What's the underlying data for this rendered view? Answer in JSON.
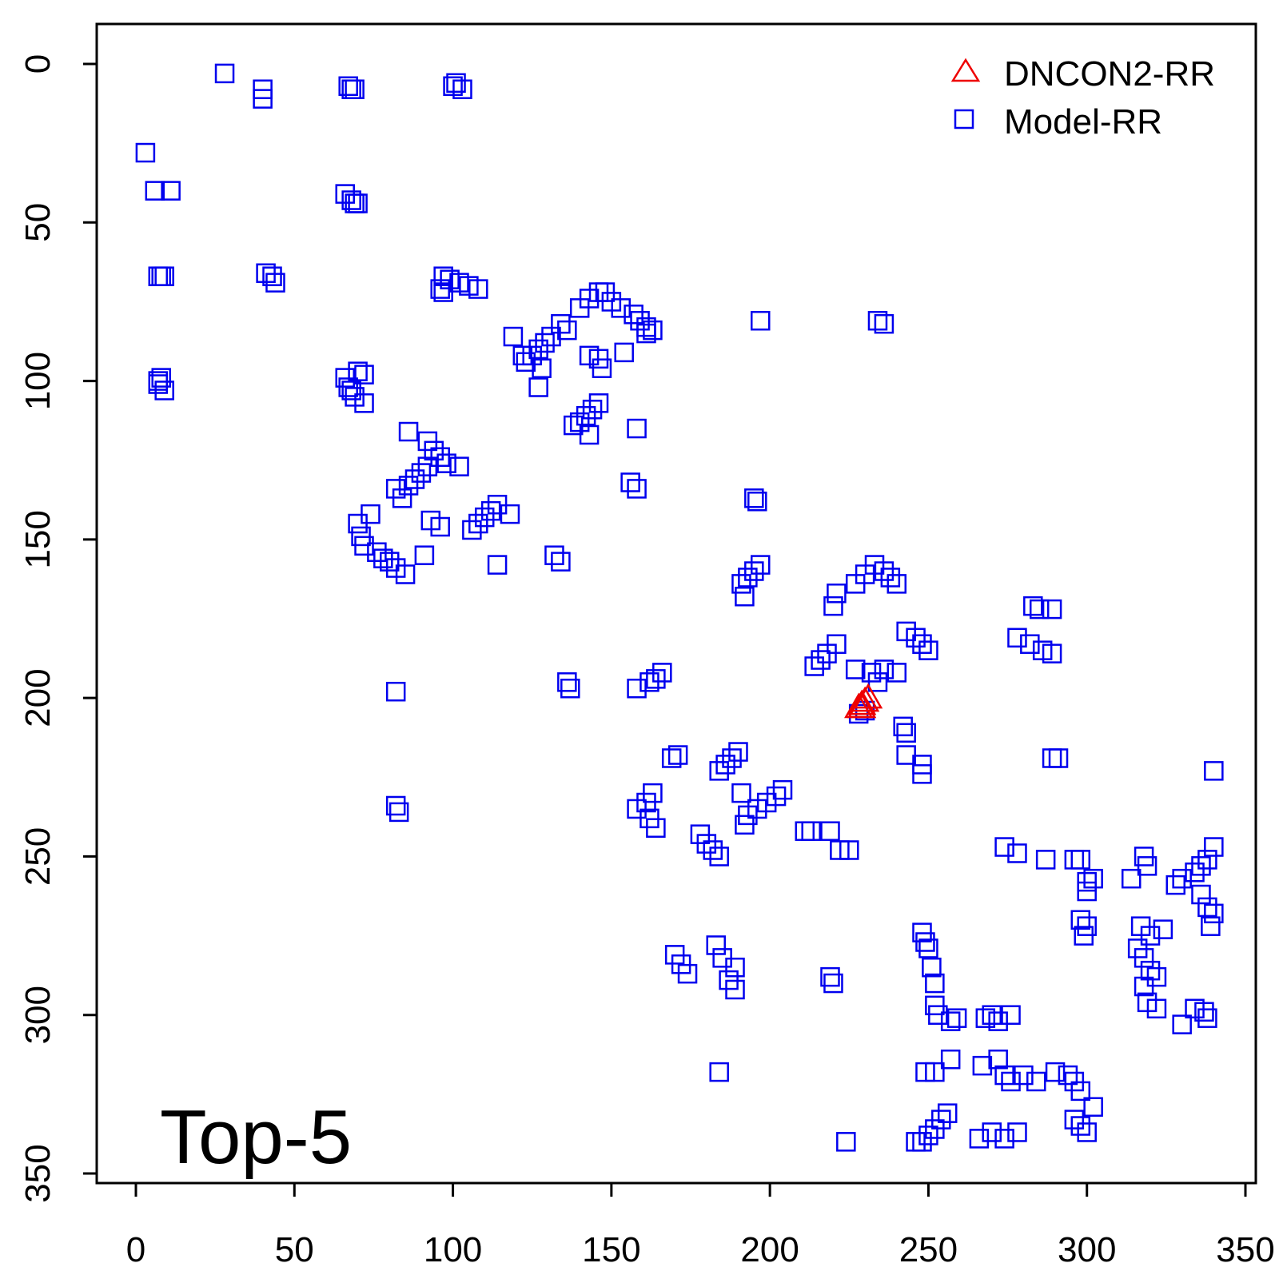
{
  "chart_data": {
    "type": "scatter",
    "title": "",
    "xlabel": "",
    "ylabel": "",
    "xlim": [
      0,
      350
    ],
    "ylim": [
      350,
      0
    ],
    "x_ticks": [
      "0",
      "50",
      "100",
      "150",
      "200",
      "250",
      "300",
      "350"
    ],
    "y_ticks": [
      "0",
      "50",
      "100",
      "150",
      "200",
      "250",
      "300",
      "350"
    ],
    "annotation": "Top-5",
    "legend": {
      "placement": "top-right",
      "entries": [
        "DNCON2-RR",
        "Model-RR"
      ]
    },
    "series": [
      {
        "name": "DNCON2-RR",
        "marker": "triangle",
        "color": "#ee0000",
        "points": [
          [
            228,
            203
          ],
          [
            229,
            202
          ],
          [
            230,
            201
          ],
          [
            231,
            200
          ],
          [
            229,
            203
          ]
        ]
      },
      {
        "name": "Model-RR",
        "marker": "square",
        "color": "#0000ee",
        "points": [
          [
            28,
            3
          ],
          [
            40,
            8
          ],
          [
            40,
            11
          ],
          [
            67,
            7
          ],
          [
            68,
            8
          ],
          [
            69,
            8
          ],
          [
            100,
            7
          ],
          [
            101,
            6
          ],
          [
            103,
            8
          ],
          [
            3,
            28
          ],
          [
            6,
            40
          ],
          [
            11,
            40
          ],
          [
            66,
            41
          ],
          [
            68,
            43
          ],
          [
            69,
            44
          ],
          [
            70,
            44
          ],
          [
            7,
            67
          ],
          [
            8,
            67
          ],
          [
            9,
            67
          ],
          [
            41,
            66
          ],
          [
            43,
            67
          ],
          [
            44,
            69
          ],
          [
            97,
            67
          ],
          [
            99,
            68
          ],
          [
            96,
            71
          ],
          [
            97,
            72
          ],
          [
            102,
            69
          ],
          [
            105,
            70
          ],
          [
            108,
            71
          ],
          [
            146,
            72
          ],
          [
            148,
            72
          ],
          [
            143,
            74
          ],
          [
            150,
            75
          ],
          [
            153,
            77
          ],
          [
            157,
            79
          ],
          [
            159,
            81
          ],
          [
            161,
            83
          ],
          [
            163,
            84
          ],
          [
            161,
            85
          ],
          [
            140,
            77
          ],
          [
            197,
            81
          ],
          [
            234,
            81
          ],
          [
            236,
            82
          ],
          [
            134,
            82
          ],
          [
            136,
            84
          ],
          [
            131,
            86
          ],
          [
            129,
            88
          ],
          [
            127,
            90
          ],
          [
            125,
            92
          ],
          [
            123,
            94
          ],
          [
            128,
            96
          ],
          [
            119,
            86
          ],
          [
            122,
            92
          ],
          [
            127,
            102
          ],
          [
            143,
            92
          ],
          [
            146,
            93
          ],
          [
            147,
            96
          ],
          [
            154,
            91
          ],
          [
            7,
            100
          ],
          [
            8,
            99
          ],
          [
            7,
            101
          ],
          [
            9,
            103
          ],
          [
            66,
            99
          ],
          [
            67,
            102
          ],
          [
            68,
            103
          ],
          [
            70,
            97
          ],
          [
            72,
            98
          ],
          [
            69,
            105
          ],
          [
            72,
            107
          ],
          [
            146,
            107
          ],
          [
            144,
            109
          ],
          [
            142,
            111
          ],
          [
            140,
            113
          ],
          [
            138,
            114
          ],
          [
            143,
            117
          ],
          [
            158,
            115
          ],
          [
            86,
            116
          ],
          [
            92,
            119
          ],
          [
            94,
            122
          ],
          [
            96,
            124
          ],
          [
            98,
            126
          ],
          [
            102,
            127
          ],
          [
            92,
            127
          ],
          [
            90,
            129
          ],
          [
            88,
            131
          ],
          [
            86,
            133
          ],
          [
            82,
            134
          ],
          [
            84,
            137
          ],
          [
            156,
            132
          ],
          [
            158,
            134
          ],
          [
            195,
            137
          ],
          [
            196,
            138
          ],
          [
            114,
            139
          ],
          [
            112,
            141
          ],
          [
            110,
            143
          ],
          [
            108,
            145
          ],
          [
            106,
            147
          ],
          [
            118,
            142
          ],
          [
            70,
            145
          ],
          [
            71,
            149
          ],
          [
            74,
            142
          ],
          [
            72,
            152
          ],
          [
            76,
            154
          ],
          [
            78,
            156
          ],
          [
            80,
            157
          ],
          [
            82,
            159
          ],
          [
            85,
            161
          ],
          [
            93,
            144
          ],
          [
            96,
            146
          ],
          [
            91,
            155
          ],
          [
            82,
            198
          ],
          [
            132,
            155
          ],
          [
            134,
            157
          ],
          [
            114,
            158
          ],
          [
            197,
            158
          ],
          [
            195,
            160
          ],
          [
            193,
            162
          ],
          [
            191,
            164
          ],
          [
            192,
            168
          ],
          [
            230,
            161
          ],
          [
            233,
            158
          ],
          [
            236,
            160
          ],
          [
            238,
            162
          ],
          [
            240,
            164
          ],
          [
            227,
            164
          ],
          [
            221,
            167
          ],
          [
            220,
            171
          ],
          [
            283,
            171
          ],
          [
            285,
            172
          ],
          [
            289,
            172
          ],
          [
            278,
            181
          ],
          [
            282,
            183
          ],
          [
            286,
            185
          ],
          [
            289,
            186
          ],
          [
            243,
            179
          ],
          [
            246,
            181
          ],
          [
            248,
            183
          ],
          [
            250,
            185
          ],
          [
            221,
            183
          ],
          [
            218,
            186
          ],
          [
            216,
            188
          ],
          [
            214,
            190
          ],
          [
            227,
            191
          ],
          [
            232,
            192
          ],
          [
            236,
            191
          ],
          [
            240,
            192
          ],
          [
            234,
            195
          ],
          [
            166,
            192
          ],
          [
            164,
            194
          ],
          [
            162,
            195
          ],
          [
            158,
            197
          ],
          [
            136,
            195
          ],
          [
            137,
            197
          ],
          [
            228,
            205
          ],
          [
            230,
            204
          ],
          [
            242,
            209
          ],
          [
            243,
            211
          ],
          [
            243,
            218
          ],
          [
            248,
            221
          ],
          [
            248,
            224
          ],
          [
            289,
            219
          ],
          [
            291,
            219
          ],
          [
            340,
            223
          ],
          [
            171,
            218
          ],
          [
            169,
            219
          ],
          [
            190,
            217
          ],
          [
            188,
            219
          ],
          [
            186,
            221
          ],
          [
            184,
            223
          ],
          [
            204,
            229
          ],
          [
            202,
            231
          ],
          [
            199,
            233
          ],
          [
            196,
            235
          ],
          [
            193,
            237
          ],
          [
            191,
            230
          ],
          [
            192,
            240
          ],
          [
            163,
            230
          ],
          [
            161,
            233
          ],
          [
            158,
            235
          ],
          [
            162,
            238
          ],
          [
            164,
            241
          ],
          [
            82,
            234
          ],
          [
            83,
            236
          ],
          [
            178,
            243
          ],
          [
            180,
            246
          ],
          [
            182,
            248
          ],
          [
            184,
            250
          ],
          [
            211,
            242
          ],
          [
            213,
            242
          ],
          [
            219,
            242
          ],
          [
            222,
            248
          ],
          [
            225,
            248
          ],
          [
            274,
            247
          ],
          [
            278,
            249
          ],
          [
            287,
            251
          ],
          [
            296,
            251
          ],
          [
            298,
            251
          ],
          [
            300,
            258
          ],
          [
            302,
            257
          ],
          [
            300,
            261
          ],
          [
            314,
            257
          ],
          [
            318,
            250
          ],
          [
            319,
            253
          ],
          [
            340,
            247
          ],
          [
            338,
            251
          ],
          [
            336,
            253
          ],
          [
            334,
            255
          ],
          [
            330,
            257
          ],
          [
            328,
            259
          ],
          [
            336,
            262
          ],
          [
            338,
            266
          ],
          [
            340,
            268
          ],
          [
            339,
            272
          ],
          [
            298,
            270
          ],
          [
            300,
            272
          ],
          [
            299,
            275
          ],
          [
            317,
            272
          ],
          [
            320,
            275
          ],
          [
            324,
            273
          ],
          [
            316,
            279
          ],
          [
            318,
            282
          ],
          [
            320,
            286
          ],
          [
            322,
            288
          ],
          [
            318,
            291
          ],
          [
            319,
            296
          ],
          [
            322,
            298
          ],
          [
            330,
            303
          ],
          [
            334,
            298
          ],
          [
            337,
            299
          ],
          [
            338,
            301
          ],
          [
            248,
            274
          ],
          [
            249,
            277
          ],
          [
            250,
            279
          ],
          [
            251,
            285
          ],
          [
            252,
            290
          ],
          [
            252,
            297
          ],
          [
            253,
            300
          ],
          [
            257,
            302
          ],
          [
            259,
            301
          ],
          [
            268,
            301
          ],
          [
            270,
            300
          ],
          [
            272,
            302
          ],
          [
            276,
            300
          ],
          [
            170,
            281
          ],
          [
            172,
            284
          ],
          [
            174,
            287
          ],
          [
            183,
            278
          ],
          [
            185,
            282
          ],
          [
            189,
            285
          ],
          [
            187,
            289
          ],
          [
            189,
            292
          ],
          [
            219,
            288
          ],
          [
            220,
            290
          ],
          [
            184,
            318
          ],
          [
            257,
            314
          ],
          [
            249,
            318
          ],
          [
            252,
            318
          ],
          [
            267,
            316
          ],
          [
            272,
            314
          ],
          [
            274,
            319
          ],
          [
            276,
            321
          ],
          [
            280,
            319
          ],
          [
            284,
            321
          ],
          [
            290,
            318
          ],
          [
            294,
            319
          ],
          [
            296,
            321
          ],
          [
            298,
            324
          ],
          [
            302,
            329
          ],
          [
            256,
            331
          ],
          [
            254,
            333
          ],
          [
            252,
            336
          ],
          [
            250,
            338
          ],
          [
            248,
            340
          ],
          [
            246,
            340
          ],
          [
            266,
            339
          ],
          [
            270,
            337
          ],
          [
            274,
            339
          ],
          [
            278,
            337
          ],
          [
            296,
            333
          ],
          [
            298,
            335
          ],
          [
            300,
            337
          ],
          [
            224,
            340
          ]
        ]
      }
    ]
  }
}
